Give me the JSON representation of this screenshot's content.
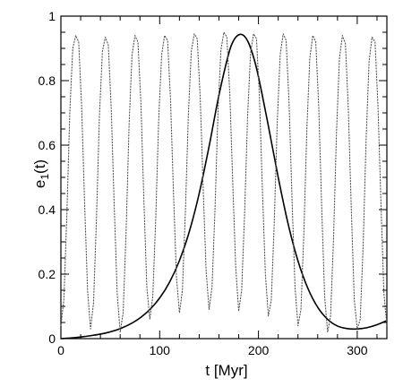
{
  "chart_data": {
    "type": "line",
    "title": "",
    "xlabel": "t [Myr]",
    "ylabel_main": "e",
    "ylabel_sub": "1",
    "ylabel_tail": "(t)",
    "xlim": [
      0,
      330
    ],
    "ylim": [
      0,
      1
    ],
    "x_ticks": [
      {
        "value": 0,
        "label": "0"
      },
      {
        "value": 100,
        "label": "100"
      },
      {
        "value": 200,
        "label": "200"
      },
      {
        "value": 300,
        "label": "300"
      }
    ],
    "y_ticks": [
      {
        "value": 0,
        "label": "0"
      },
      {
        "value": 0.2,
        "label": "0.2"
      },
      {
        "value": 0.4,
        "label": "0.4"
      },
      {
        "value": 0.6,
        "label": "0.6"
      },
      {
        "value": 0.8,
        "label": "0.8"
      },
      {
        "value": 1,
        "label": "1"
      }
    ],
    "grid": false,
    "series": [
      {
        "style": "solid",
        "color": "#000000",
        "x": [
          0,
          10,
          20,
          30,
          40,
          50,
          60,
          70,
          80,
          90,
          100,
          110,
          120,
          130,
          140,
          150,
          160,
          170,
          175,
          180,
          185,
          190,
          195,
          200,
          210,
          220,
          230,
          240,
          250,
          260,
          270,
          280,
          290,
          300,
          310,
          320,
          330
        ],
        "y": [
          0.0,
          0.002,
          0.005,
          0.009,
          0.014,
          0.021,
          0.031,
          0.045,
          0.064,
          0.09,
          0.126,
          0.175,
          0.242,
          0.332,
          0.45,
          0.596,
          0.755,
          0.885,
          0.925,
          0.942,
          0.94,
          0.917,
          0.873,
          0.812,
          0.66,
          0.5,
          0.356,
          0.241,
          0.156,
          0.097,
          0.06,
          0.039,
          0.031,
          0.03,
          0.034,
          0.043,
          0.056
        ]
      },
      {
        "style": "dotted",
        "color": "#555555",
        "x": [
          0,
          3,
          6,
          9,
          12,
          15,
          18,
          21,
          24,
          27,
          30,
          33,
          36,
          39,
          42,
          45,
          48,
          51,
          54,
          57,
          60,
          63,
          66,
          69,
          72,
          75,
          78,
          81,
          84,
          87,
          90,
          93,
          96,
          99,
          102,
          105,
          108,
          111,
          114,
          117,
          120,
          123,
          126,
          129,
          132,
          135,
          138,
          141,
          144,
          147,
          150,
          153,
          156,
          159,
          162,
          165,
          168,
          171,
          174,
          177,
          180,
          183,
          186,
          189,
          192,
          195,
          198,
          201,
          204,
          207,
          210,
          213,
          216,
          219,
          222,
          225,
          228,
          231,
          234,
          237,
          240,
          243,
          246,
          249,
          252,
          255,
          258,
          261,
          264,
          267,
          270,
          273,
          276,
          279,
          282,
          285,
          288,
          291,
          294,
          297,
          300,
          303,
          306,
          309,
          312,
          315,
          318,
          321,
          324,
          327,
          330
        ],
        "y": [
          0.04,
          0.12,
          0.38,
          0.7,
          0.9,
          0.94,
          0.92,
          0.72,
          0.42,
          0.15,
          0.03,
          0.11,
          0.37,
          0.69,
          0.89,
          0.935,
          0.91,
          0.71,
          0.41,
          0.14,
          0.02,
          0.08,
          0.33,
          0.66,
          0.88,
          0.94,
          0.92,
          0.73,
          0.43,
          0.16,
          0.06,
          0.13,
          0.37,
          0.68,
          0.88,
          0.94,
          0.925,
          0.74,
          0.45,
          0.19,
          0.08,
          0.15,
          0.39,
          0.69,
          0.89,
          0.945,
          0.93,
          0.75,
          0.47,
          0.21,
          0.09,
          0.16,
          0.4,
          0.7,
          0.895,
          0.95,
          0.935,
          0.76,
          0.48,
          0.22,
          0.085,
          0.15,
          0.39,
          0.69,
          0.885,
          0.945,
          0.93,
          0.75,
          0.46,
          0.2,
          0.07,
          0.12,
          0.36,
          0.67,
          0.88,
          0.945,
          0.925,
          0.73,
          0.43,
          0.16,
          0.04,
          0.09,
          0.33,
          0.65,
          0.87,
          0.94,
          0.92,
          0.72,
          0.41,
          0.13,
          0.02,
          0.07,
          0.31,
          0.64,
          0.87,
          0.94,
          0.915,
          0.71,
          0.4,
          0.12,
          0.03,
          0.06,
          0.29,
          0.62,
          0.86,
          0.935,
          0.92,
          0.72,
          0.42,
          0.14,
          0.04
        ]
      }
    ]
  }
}
